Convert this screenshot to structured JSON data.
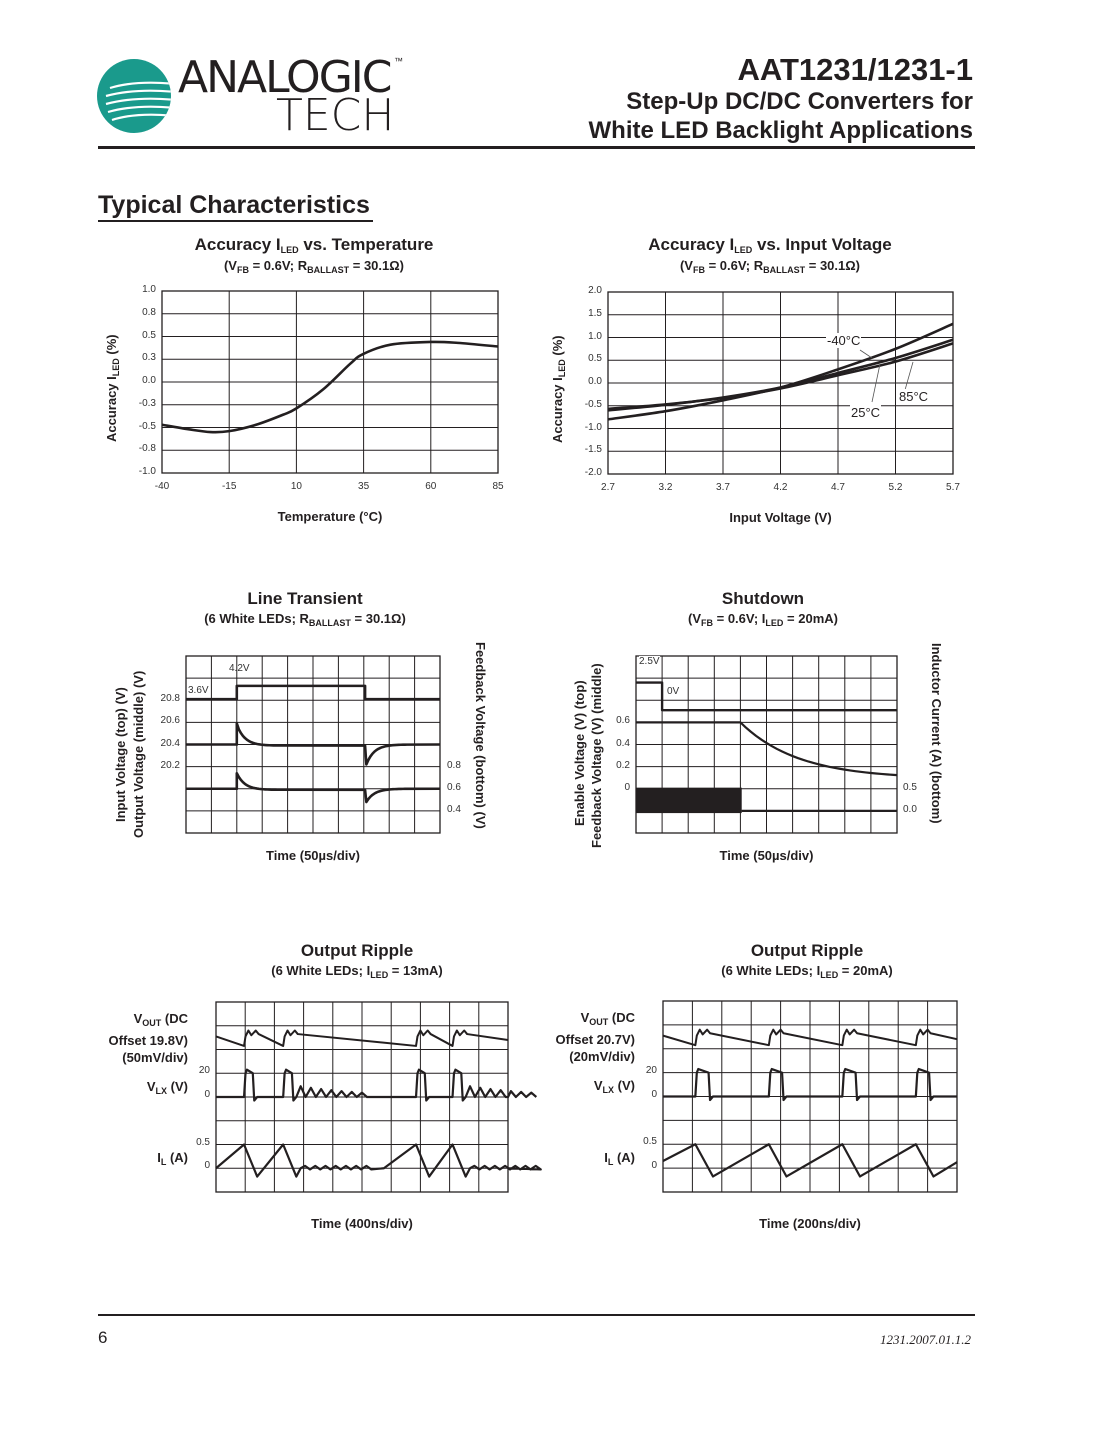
{
  "header": {
    "logo_text_top": "ANALOGIC",
    "logo_text_bottom": "TECH",
    "logo_tm": "™",
    "part_number": "AAT1231/1231-1",
    "subtitle_line1": "Step-Up DC/DC Converters for",
    "subtitle_line2": "White LED Backlight Applications",
    "brand_color": "#1a9a8c"
  },
  "section_title": "Typical Characteristics",
  "footer": {
    "page_number": "6",
    "doc_code": "1231.2007.01.1.2"
  },
  "chart_data": [
    {
      "type": "line",
      "title": [
        [
          "Accuracy I",
          ""
        ],
        [
          "LED",
          "sub"
        ],
        [
          " vs. Temperature",
          ""
        ]
      ],
      "subtitle": [
        [
          "(V",
          ""
        ],
        [
          "FB",
          "sub"
        ],
        [
          " = 0.6V; R",
          ""
        ],
        [
          "BALLAST",
          "sub"
        ],
        [
          " = 30.1Ω)",
          ""
        ]
      ],
      "xlabel": "Temperature (°C)",
      "ylabel": [
        [
          "Accuracy I",
          ""
        ],
        [
          "LED",
          "sub"
        ],
        [
          " (%)",
          ""
        ]
      ],
      "xlim": [
        -40,
        85
      ],
      "ylim": [
        -1,
        1
      ],
      "grid": true,
      "xticks": [
        "-40",
        "-15",
        "10",
        "35",
        "60",
        "85"
      ],
      "yticks": [
        "1.0",
        "0.8",
        "0.5",
        "0.3",
        "0.0",
        "-0.3",
        "-0.5",
        "-0.8",
        "-1.0"
      ],
      "series": [
        {
          "x": [
            -40,
            -30,
            -22,
            -15,
            -5,
            5,
            10,
            20,
            30,
            35,
            45,
            60,
            70,
            85
          ],
          "y": [
            -0.47,
            -0.52,
            -0.55,
            -0.54,
            -0.47,
            -0.36,
            -0.29,
            -0.08,
            0.2,
            0.31,
            0.41,
            0.44,
            0.43,
            0.39
          ]
        }
      ]
    },
    {
      "type": "line",
      "title": [
        [
          "Accuracy I",
          ""
        ],
        [
          "LED",
          "sub"
        ],
        [
          " vs. Input Voltage",
          ""
        ]
      ],
      "subtitle": [
        [
          "(V",
          ""
        ],
        [
          "FB",
          "sub"
        ],
        [
          " = 0.6V; R",
          ""
        ],
        [
          "BALLAST",
          "sub"
        ],
        [
          " = 30.1Ω)",
          ""
        ]
      ],
      "xlabel": "Input Voltage (V)",
      "ylabel": [
        [
          "Accuracy I",
          ""
        ],
        [
          "LED",
          "sub"
        ],
        [
          " (%)",
          ""
        ]
      ],
      "xlim": [
        2.7,
        5.7
      ],
      "ylim": [
        -2,
        2
      ],
      "grid": true,
      "xticks": [
        "2.7",
        "3.2",
        "3.7",
        "4.2",
        "4.7",
        "5.2",
        "5.7"
      ],
      "yticks": [
        "2.0",
        "1.5",
        "1.0",
        "0.5",
        "0.0",
        "-0.5",
        "-1.0",
        "-1.5",
        "-2.0"
      ],
      "series": [
        {
          "name": "-40°C",
          "x": [
            2.7,
            3.2,
            3.7,
            4.2,
            4.7,
            5.2,
            5.7
          ],
          "y": [
            -0.8,
            -0.62,
            -0.38,
            -0.1,
            0.3,
            0.75,
            1.3
          ]
        },
        {
          "name": "25°C",
          "x": [
            2.7,
            3.2,
            3.7,
            4.2,
            4.7,
            5.2,
            5.7
          ],
          "y": [
            -0.6,
            -0.48,
            -0.32,
            -0.1,
            0.22,
            0.55,
            0.95
          ]
        },
        {
          "name": "85°C",
          "x": [
            2.7,
            3.2,
            3.7,
            4.2,
            4.7,
            5.2,
            5.7
          ],
          "y": [
            -0.57,
            -0.47,
            -0.33,
            -0.12,
            0.17,
            0.47,
            0.87
          ]
        }
      ]
    },
    {
      "type": "line",
      "title": "Line Transient",
      "subtitle": [
        [
          "(6 White LEDs; R",
          ""
        ],
        [
          "BALLAST",
          "sub"
        ],
        [
          " = 30.1Ω)",
          ""
        ]
      ],
      "xlabel": "Time (50µs/div)",
      "ylabel_left": [
        "Input Voltage (top) (V)",
        "Output Voltage (middle) (V)"
      ],
      "ylabel_right": "Feedback Voltage (bottom) (V)",
      "left_ticks": [
        "20.8",
        "20.6",
        "20.4",
        "20.2"
      ],
      "right_ticks": [
        "0.8",
        "0.6",
        "0.4"
      ],
      "annotations": [
        "3.6V",
        "4.2V"
      ]
    },
    {
      "type": "line",
      "title": "Shutdown",
      "subtitle": [
        [
          "(V",
          ""
        ],
        [
          "FB",
          "sub"
        ],
        [
          " = 0.6V; I",
          ""
        ],
        [
          "LED",
          "sub"
        ],
        [
          " = 20mA)",
          ""
        ]
      ],
      "xlabel": "Time (50µs/div)",
      "ylabel_left": [
        "Enable Voltage (V) (top)",
        "Feedback Voltage (V) (middle)"
      ],
      "ylabel_right": "Inductor Current (A) (bottom)",
      "left_ticks": [
        "0.6",
        "0.4",
        "0.2",
        "0"
      ],
      "right_ticks": [
        "0.5",
        "0.0"
      ],
      "annotations": [
        "2.5V",
        "0V"
      ]
    },
    {
      "type": "line",
      "title": "Output Ripple",
      "subtitle": [
        [
          "(6 White LEDs; I",
          ""
        ],
        [
          "LED",
          "sub"
        ],
        [
          " = 13mA)",
          ""
        ]
      ],
      "xlabel": "Time (400ns/div)",
      "trace_labels": {
        "vout": [
          "V",
          "OUT",
          " (DC",
          "Offset 19.8V)",
          "(50mV/div)"
        ],
        "vlx": [
          "V",
          "LX",
          " (V)"
        ],
        "il": [
          "I",
          "L",
          " (A)"
        ]
      },
      "ticks": [
        "20",
        "0",
        "0.5",
        "0"
      ]
    },
    {
      "type": "line",
      "title": "Output Ripple",
      "subtitle": [
        [
          "(6 White LEDs; I",
          ""
        ],
        [
          "LED",
          "sub"
        ],
        [
          " = 20mA)",
          ""
        ]
      ],
      "xlabel": "Time (200ns/div)",
      "trace_labels": {
        "vout": [
          "V",
          "OUT",
          " (DC",
          "Offset 20.7V)",
          "(20mV/div)"
        ],
        "vlx": [
          "V",
          "LX",
          " (V)"
        ],
        "il": [
          "I",
          "L",
          " (A)"
        ]
      },
      "ticks": [
        "20",
        "0",
        "0.5",
        "0"
      ]
    }
  ]
}
